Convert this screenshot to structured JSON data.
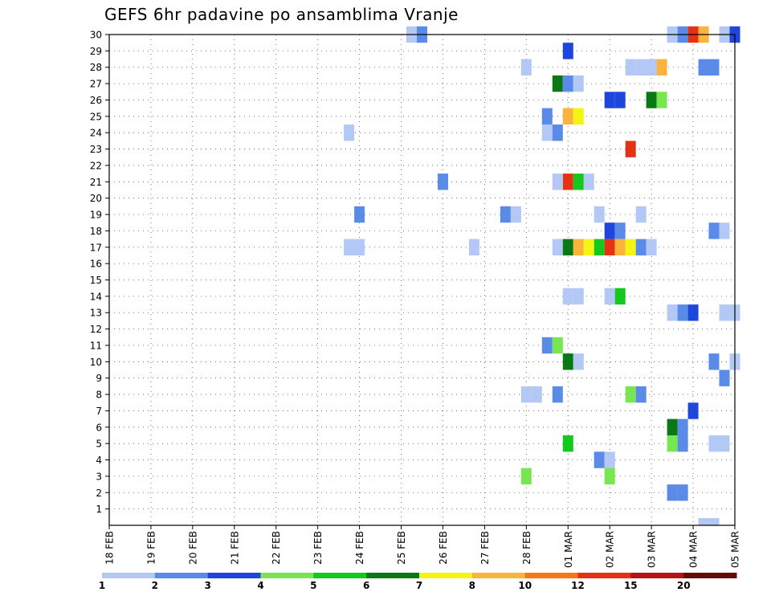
{
  "chart_data": {
    "type": "heatmap",
    "title": "GEFS 6hr padavine po ansamblima Vranje",
    "xlabel": "",
    "ylabel": "",
    "x_tick_labels": [
      "18 FEB",
      "19 FEB",
      "20 FEB",
      "21 FEB",
      "22 FEB",
      "23 FEB",
      "24 FEB",
      "25 FEB",
      "26 FEB",
      "27 FEB",
      "28 FEB",
      "01 MAR",
      "02 MAR",
      "03 MAR",
      "04 MAR",
      "05 MAR"
    ],
    "x_range_days": [
      0,
      15
    ],
    "y_tick_labels": [
      "1",
      "2",
      "3",
      "4",
      "5",
      "6",
      "7",
      "8",
      "9",
      "10",
      "11",
      "12",
      "13",
      "14",
      "15",
      "16",
      "17",
      "18",
      "19",
      "20",
      "21",
      "22",
      "23",
      "24",
      "25",
      "26",
      "27",
      "28",
      "29",
      "30"
    ],
    "ylim": [
      0,
      30
    ],
    "grid": true,
    "colorbar": {
      "colors": [
        "#b4c8f5",
        "#5a8be8",
        "#1e46dc",
        "#78e650",
        "#14c81e",
        "#0a7814",
        "#f5f514",
        "#fab43c",
        "#f57814",
        "#e63214",
        "#b41414",
        "#640a0a"
      ],
      "labels": [
        "1",
        "2",
        "3",
        "4",
        "5",
        "6",
        "7",
        "8",
        "10",
        "12",
        "15",
        "20"
      ]
    },
    "cells": [
      [
        7.25,
        30,
        1
      ],
      [
        7.5,
        30,
        2
      ],
      [
        13.5,
        30,
        1
      ],
      [
        13.75,
        30,
        2
      ],
      [
        14.0,
        30,
        10
      ],
      [
        14.25,
        30,
        8
      ],
      [
        14.75,
        30,
        1
      ],
      [
        15.0,
        30,
        3
      ],
      [
        11.0,
        29,
        3
      ],
      [
        10.0,
        28,
        1
      ],
      [
        12.5,
        28,
        1
      ],
      [
        12.75,
        28,
        1
      ],
      [
        13.0,
        28,
        1
      ],
      [
        13.25,
        28,
        8
      ],
      [
        14.25,
        28,
        2
      ],
      [
        14.5,
        28,
        2
      ],
      [
        10.75,
        27,
        6
      ],
      [
        11.0,
        27,
        2
      ],
      [
        11.25,
        27,
        1
      ],
      [
        12.0,
        26,
        3
      ],
      [
        12.25,
        26,
        3
      ],
      [
        13.0,
        26,
        6
      ],
      [
        13.25,
        26,
        4
      ],
      [
        10.5,
        25,
        2
      ],
      [
        11.0,
        25,
        8
      ],
      [
        11.25,
        25,
        7
      ],
      [
        5.75,
        24,
        1
      ],
      [
        10.5,
        24,
        1
      ],
      [
        10.75,
        24,
        2
      ],
      [
        12.5,
        23,
        10
      ],
      [
        8.0,
        21,
        2
      ],
      [
        11.0,
        21,
        10
      ],
      [
        11.25,
        21,
        5
      ],
      [
        11.5,
        21,
        1
      ],
      [
        10.75,
        21,
        1
      ],
      [
        6.0,
        19,
        2
      ],
      [
        9.5,
        19,
        2
      ],
      [
        9.75,
        19,
        1
      ],
      [
        11.75,
        19,
        1
      ],
      [
        12.75,
        19,
        1
      ],
      [
        12.0,
        18,
        3
      ],
      [
        12.25,
        18,
        2
      ],
      [
        14.5,
        18,
        2
      ],
      [
        14.75,
        18,
        1
      ],
      [
        5.75,
        17,
        1
      ],
      [
        6.0,
        17,
        1
      ],
      [
        8.75,
        17,
        1
      ],
      [
        10.75,
        17,
        1
      ],
      [
        11.0,
        17,
        6
      ],
      [
        11.25,
        17,
        8
      ],
      [
        11.5,
        17,
        7
      ],
      [
        11.75,
        17,
        5
      ],
      [
        12.0,
        17,
        10
      ],
      [
        12.25,
        17,
        8
      ],
      [
        12.5,
        17,
        7
      ],
      [
        12.75,
        17,
        2
      ],
      [
        13.0,
        17,
        1
      ],
      [
        11.0,
        14,
        1
      ],
      [
        11.25,
        14,
        1
      ],
      [
        12.0,
        14,
        1
      ],
      [
        12.25,
        14,
        5
      ],
      [
        13.5,
        13,
        1
      ],
      [
        13.75,
        13,
        2
      ],
      [
        14.0,
        13,
        3
      ],
      [
        14.75,
        13,
        1
      ],
      [
        15.0,
        13,
        1
      ],
      [
        10.5,
        11,
        2
      ],
      [
        10.75,
        11,
        4
      ],
      [
        11.0,
        10,
        6
      ],
      [
        11.25,
        10,
        1
      ],
      [
        14.5,
        10,
        2
      ],
      [
        15.0,
        10,
        1
      ],
      [
        14.75,
        9,
        2
      ],
      [
        10.0,
        8,
        1
      ],
      [
        10.25,
        8,
        1
      ],
      [
        10.75,
        8,
        2
      ],
      [
        12.5,
        8,
        4
      ],
      [
        12.75,
        8,
        2
      ],
      [
        14.0,
        7,
        3
      ],
      [
        13.5,
        6,
        6
      ],
      [
        13.75,
        6,
        2
      ],
      [
        11.0,
        5,
        5
      ],
      [
        13.5,
        5,
        4
      ],
      [
        13.75,
        5,
        2
      ],
      [
        14.5,
        5,
        1
      ],
      [
        14.75,
        5,
        1
      ],
      [
        11.75,
        4,
        2
      ],
      [
        12.0,
        4,
        1
      ],
      [
        10.0,
        3,
        4
      ],
      [
        12.0,
        3,
        4
      ],
      [
        13.5,
        2,
        2
      ],
      [
        13.75,
        2,
        2
      ],
      [
        14.25,
        0,
        1
      ],
      [
        14.5,
        0,
        1
      ]
    ]
  }
}
